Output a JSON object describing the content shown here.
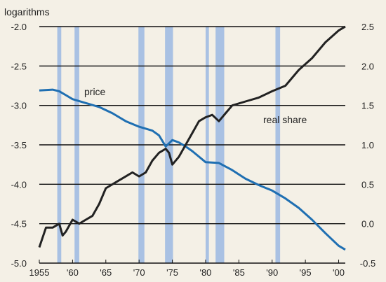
{
  "chart_data": {
    "type": "line",
    "left_axis_label": "logarithms",
    "left_ylim": [
      -5.0,
      -2.0
    ],
    "left_ticks": [
      "-2.0",
      "-2.5",
      "-3.0",
      "-3.5",
      "-4.0",
      "-4.5",
      "-5.0"
    ],
    "right_ylim": [
      -0.5,
      2.5
    ],
    "right_ticks": [
      "2.5",
      "2.0",
      "1.5",
      "1.0",
      "0.5",
      "0.0",
      "-0.5"
    ],
    "xlim": [
      1955,
      2001
    ],
    "x_ticks": [
      {
        "value": 1955,
        "label": "1955"
      },
      {
        "value": 1960,
        "label": "'60"
      },
      {
        "value": 1965,
        "label": "'65"
      },
      {
        "value": 1970,
        "label": "'70"
      },
      {
        "value": 1975,
        "label": "'75"
      },
      {
        "value": 1980,
        "label": "'80"
      },
      {
        "value": 1985,
        "label": "'85"
      },
      {
        "value": 1990,
        "label": "'90"
      },
      {
        "value": 1995,
        "label": "'95"
      },
      {
        "value": 2000,
        "label": "'00"
      }
    ],
    "grid": "horizontal",
    "recessions": [
      [
        1957.7,
        1958.3
      ],
      [
        1960.3,
        1961.0
      ],
      [
        1969.9,
        1970.8
      ],
      [
        1973.9,
        1975.1
      ],
      [
        1980.0,
        1980.5
      ],
      [
        1981.5,
        1982.8
      ],
      [
        1990.5,
        1991.2
      ]
    ],
    "series": [
      {
        "name": "price",
        "axis": "left",
        "color": "#1f6fb2",
        "points": [
          [
            1955,
            -2.81
          ],
          [
            1957,
            -2.8
          ],
          [
            1958,
            -2.82
          ],
          [
            1959,
            -2.87
          ],
          [
            1960,
            -2.92
          ],
          [
            1962,
            -2.97
          ],
          [
            1964,
            -3.02
          ],
          [
            1966,
            -3.1
          ],
          [
            1968,
            -3.2
          ],
          [
            1970,
            -3.27
          ],
          [
            1972,
            -3.32
          ],
          [
            1973,
            -3.38
          ],
          [
            1974,
            -3.52
          ],
          [
            1975,
            -3.44
          ],
          [
            1976,
            -3.47
          ],
          [
            1977,
            -3.52
          ],
          [
            1978,
            -3.58
          ],
          [
            1979,
            -3.65
          ],
          [
            1980,
            -3.72
          ],
          [
            1982,
            -3.73
          ],
          [
            1984,
            -3.82
          ],
          [
            1986,
            -3.93
          ],
          [
            1988,
            -4.01
          ],
          [
            1990,
            -4.08
          ],
          [
            1992,
            -4.18
          ],
          [
            1994,
            -4.3
          ],
          [
            1996,
            -4.45
          ],
          [
            1998,
            -4.62
          ],
          [
            2000,
            -4.78
          ],
          [
            2001,
            -4.83
          ]
        ]
      },
      {
        "name": "real share",
        "axis": "right",
        "color": "#222222",
        "points": [
          [
            1955,
            -0.3
          ],
          [
            1956,
            -0.05
          ],
          [
            1957,
            -0.05
          ],
          [
            1958,
            0.0
          ],
          [
            1958.5,
            -0.15
          ],
          [
            1959,
            -0.1
          ],
          [
            1960,
            0.05
          ],
          [
            1961,
            0.0
          ],
          [
            1962,
            0.05
          ],
          [
            1963,
            0.1
          ],
          [
            1964,
            0.25
          ],
          [
            1965,
            0.45
          ],
          [
            1966,
            0.5
          ],
          [
            1967,
            0.55
          ],
          [
            1968,
            0.6
          ],
          [
            1969,
            0.65
          ],
          [
            1970,
            0.6
          ],
          [
            1971,
            0.65
          ],
          [
            1972,
            0.8
          ],
          [
            1973,
            0.9
          ],
          [
            1974,
            0.95
          ],
          [
            1974.5,
            0.9
          ],
          [
            1975,
            0.75
          ],
          [
            1976,
            0.85
          ],
          [
            1977,
            1.0
          ],
          [
            1978,
            1.15
          ],
          [
            1979,
            1.3
          ],
          [
            1980,
            1.35
          ],
          [
            1981,
            1.38
          ],
          [
            1982,
            1.3
          ],
          [
            1983,
            1.4
          ],
          [
            1984,
            1.5
          ],
          [
            1986,
            1.55
          ],
          [
            1988,
            1.6
          ],
          [
            1990,
            1.68
          ],
          [
            1992,
            1.75
          ],
          [
            1994,
            1.95
          ],
          [
            1996,
            2.1
          ],
          [
            1998,
            2.3
          ],
          [
            2000,
            2.45
          ],
          [
            2001,
            2.5
          ]
        ]
      }
    ]
  },
  "labels": {
    "price": "price",
    "real_share": "real share"
  }
}
